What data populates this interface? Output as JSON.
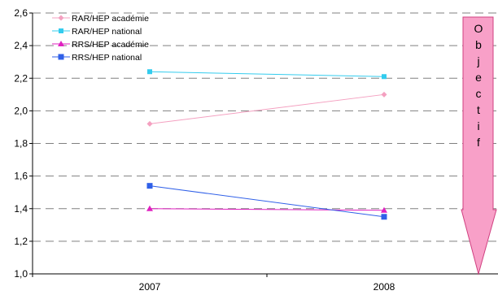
{
  "chart_data": {
    "type": "line",
    "categories": [
      "2007",
      "2008"
    ],
    "ylim": [
      1.0,
      2.6
    ],
    "y_tick_labels": [
      "1,0",
      "1,2",
      "1,4",
      "1,6",
      "1,8",
      "2,0",
      "2,2",
      "2,4",
      "2,6"
    ],
    "grid": true,
    "legend_position": "top-left",
    "series": [
      {
        "name": "RAR/HEP académie",
        "values": [
          1.92,
          2.1
        ],
        "color": "#f4a0c0",
        "marker": "diamond"
      },
      {
        "name": "RAR/HEP national",
        "values": [
          2.24,
          2.21
        ],
        "color": "#33ccee",
        "marker": "square"
      },
      {
        "name": "RRS/HEP académie",
        "values": [
          1.4,
          1.39
        ],
        "color": "#e020c0",
        "marker": "triangle"
      },
      {
        "name": "RRS/HEP national",
        "values": [
          1.54,
          1.35
        ],
        "color": "#3060e8",
        "marker": "square"
      }
    ],
    "annotation": {
      "text": "Objectif",
      "letters": [
        "O",
        "b",
        "j",
        "e",
        "c",
        "t",
        "i",
        "f"
      ],
      "shape": "down-arrow",
      "fill": "#f8a0c8",
      "stroke": "#d04080"
    }
  }
}
